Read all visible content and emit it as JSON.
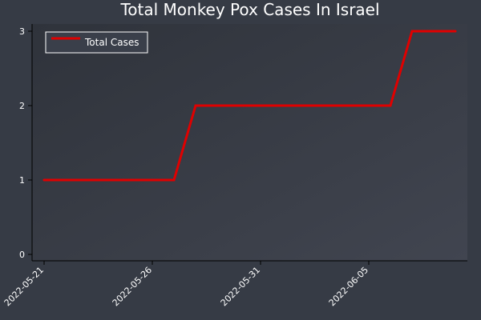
{
  "chart_data": {
    "type": "line",
    "title": "Total Monkey Pox Cases In Israel",
    "xlabel": "",
    "ylabel": "",
    "x": [
      "2022-05-21",
      "2022-05-22",
      "2022-05-23",
      "2022-05-24",
      "2022-05-25",
      "2022-05-26",
      "2022-05-27",
      "2022-05-28",
      "2022-05-29",
      "2022-05-30",
      "2022-05-31",
      "2022-06-01",
      "2022-06-02",
      "2022-06-03",
      "2022-06-04",
      "2022-06-05",
      "2022-06-06",
      "2022-06-07",
      "2022-06-08",
      "2022-06-09"
    ],
    "series": [
      {
        "name": "Total Cases",
        "values": [
          1,
          1,
          1,
          1,
          1,
          1,
          1,
          2,
          2,
          2,
          2,
          2,
          2,
          2,
          2,
          2,
          2,
          3,
          3,
          3
        ],
        "color": "#e00000"
      }
    ],
    "x_ticks": [
      "2022-05-21",
      "2022-05-26",
      "2022-05-31",
      "2022-06-05"
    ],
    "y_ticks": [
      0,
      1,
      2,
      3
    ],
    "ylim": [
      0,
      3
    ],
    "grid": false,
    "legend": {
      "position": "top-left"
    },
    "colors": {
      "background": "#363b45",
      "plot_background": "#313540",
      "line": "#e00000",
      "text": "#ffffff"
    }
  }
}
